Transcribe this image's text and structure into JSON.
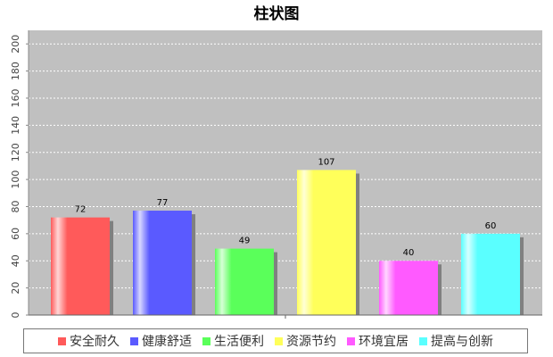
{
  "chart_data": {
    "type": "bar",
    "title": "柱状图",
    "xlabel": "",
    "ylabel": "",
    "ylim": [
      0,
      210
    ],
    "yticks": [
      0,
      20,
      40,
      60,
      80,
      100,
      120,
      140,
      160,
      180,
      200
    ],
    "grid": true,
    "legend_position": "bottom",
    "categories": [
      "安全耐久",
      "健康舒适",
      "生活便利",
      "资源节约",
      "环境宜居",
      "提高与创新"
    ],
    "values": [
      72,
      77,
      49,
      107,
      40,
      60
    ],
    "colors": [
      "#ff5a5a",
      "#5a5aff",
      "#5aff5a",
      "#ffff5a",
      "#ff5aff",
      "#5affff"
    ],
    "plot_background": "#c0c0c0"
  }
}
